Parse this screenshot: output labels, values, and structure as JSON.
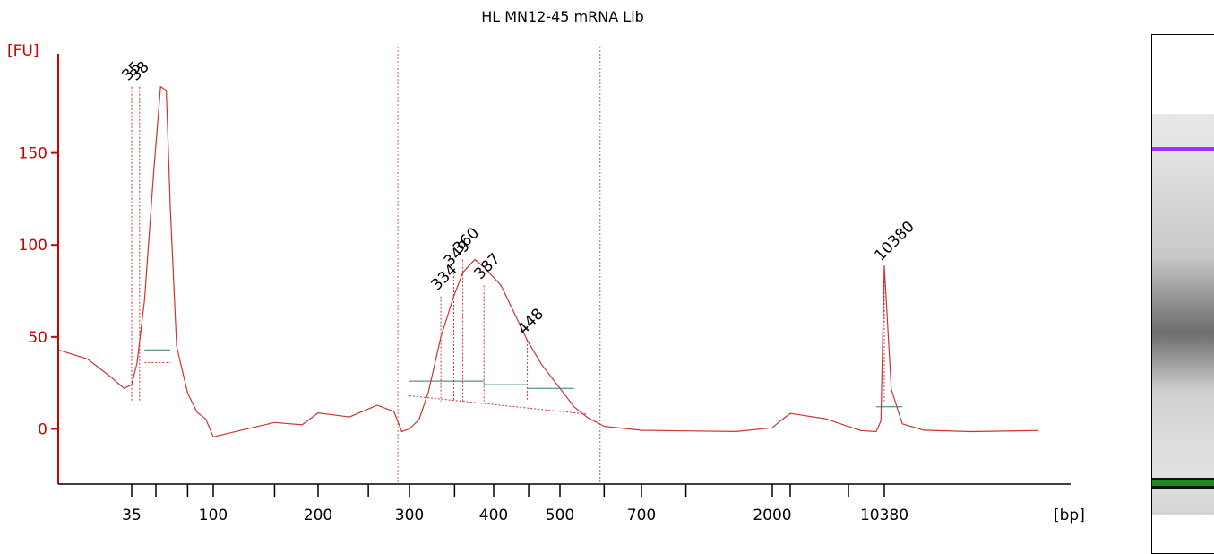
{
  "chart_data": {
    "type": "line",
    "title": "HL MN12-45 mRNA Lib",
    "ylabel": "[FU]",
    "xlabel": "[bp]",
    "ylim": [
      -30,
      200
    ],
    "y_ticks": [
      "0",
      "50",
      "100",
      "150"
    ],
    "y_tick_values": [
      0,
      50,
      100,
      150
    ],
    "x_tick_labels": [
      "35",
      "100",
      "200",
      "300",
      "400",
      "500",
      "700",
      "2000",
      "10380"
    ],
    "series": [
      {
        "x": [
          20,
          25,
          30,
          33,
          35,
          37,
          40,
          44,
          48,
          52,
          55,
          60,
          70,
          80,
          90,
          100,
          120,
          150,
          180,
          200,
          230,
          260,
          280,
          290,
          300,
          310,
          320,
          334,
          349,
          360,
          375,
          387,
          410,
          430,
          448,
          470,
          500,
          530,
          560,
          600,
          700,
          1000,
          1500,
          2000,
          2500,
          3000,
          5000,
          8000,
          9500,
          10000,
          10380,
          10800,
          11500,
          13000,
          17000,
          25000
        ],
        "y": [
          43,
          38,
          28,
          22,
          24,
          36,
          70,
          140,
          186,
          184,
          120,
          45,
          20,
          8,
          4,
          -5,
          0,
          5,
          3,
          8,
          5,
          12,
          10,
          0,
          0,
          5,
          20,
          50,
          72,
          85,
          92,
          88,
          78,
          62,
          48,
          35,
          22,
          12,
          5,
          0,
          -1,
          0,
          0,
          1,
          4,
          7,
          5,
          0,
          0,
          5,
          88,
          20,
          2,
          0,
          0,
          0
        ]
      }
    ],
    "peaks": [
      {
        "bp": "35",
        "fu": 186,
        "label": "35",
        "color": "#1a8c1a"
      },
      {
        "bp": "38",
        "fu": 186,
        "label": "38",
        "color": "#000000"
      },
      {
        "bp": "334",
        "fu": 72,
        "label": "334",
        "color": "#000000"
      },
      {
        "bp": "349",
        "fu": 85,
        "label": "349",
        "color": "#000000"
      },
      {
        "bp": "360",
        "fu": 92,
        "label": "360",
        "color": "#000000"
      },
      {
        "bp": "387",
        "fu": 78,
        "label": "387",
        "color": "#000000"
      },
      {
        "bp": "448",
        "fu": 48,
        "label": "448",
        "color": "#000000"
      },
      {
        "bp": "10380",
        "fu": 88,
        "label": "10380",
        "color": "#9933ee"
      }
    ],
    "region": {
      "start_bp": 285,
      "end_bp": 590
    },
    "colors": {
      "trace": "#cc3333",
      "axis": "#cc0000",
      "baseline": "#2e7d5b",
      "marker_upper": "#9b30ff",
      "marker_lower": "#1a8c1a"
    },
    "gel_lane": {
      "visible": true
    }
  }
}
